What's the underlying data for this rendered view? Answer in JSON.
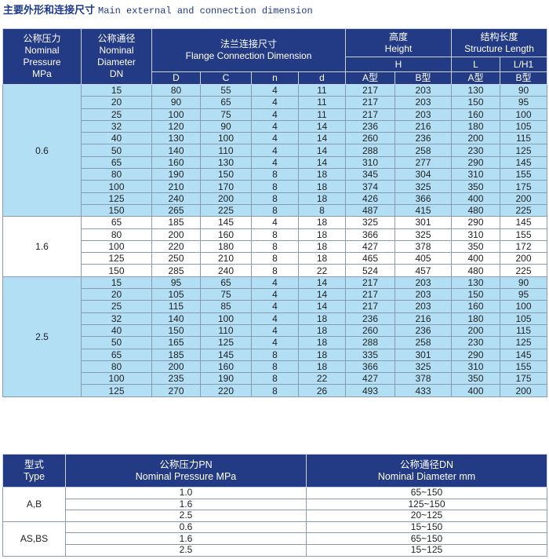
{
  "title": {
    "cn": "主要外形和连接尺寸",
    "en": "Main external and connection  dimension"
  },
  "table1": {
    "headers": {
      "pressure": [
        "公称压力",
        "Nominal",
        "Pressure",
        "MPa"
      ],
      "diameter": [
        "公称通径",
        "Nominal",
        "Diameter",
        "DN"
      ],
      "flange": [
        "法兰连接尺寸",
        "Flange Connection Dimension"
      ],
      "height": [
        "高度",
        "Height"
      ],
      "length": [
        "结构长度",
        "Structure Length"
      ],
      "H": "H",
      "L": "L",
      "LH1": "L/H1",
      "sub": [
        "D",
        "C",
        "n",
        "d",
        "A型",
        "B型",
        "A型",
        "B型"
      ]
    },
    "groups": [
      {
        "pressure": "0.6",
        "shade": "blue",
        "rows": [
          [
            "15",
            "80",
            "55",
            "4",
            "11",
            "217",
            "203",
            "130",
            "90"
          ],
          [
            "20",
            "90",
            "65",
            "4",
            "11",
            "217",
            "203",
            "150",
            "95"
          ],
          [
            "25",
            "100",
            "75",
            "4",
            "11",
            "217",
            "203",
            "160",
            "100"
          ],
          [
            "32",
            "120",
            "90",
            "4",
            "14",
            "236",
            "216",
            "180",
            "105"
          ],
          [
            "40",
            "130",
            "100",
            "4",
            "14",
            "260",
            "236",
            "200",
            "115"
          ],
          [
            "50",
            "140",
            "110",
            "4",
            "14",
            "288",
            "258",
            "230",
            "125"
          ],
          [
            "65",
            "160",
            "130",
            "4",
            "14",
            "310",
            "277",
            "290",
            "145"
          ],
          [
            "80",
            "190",
            "150",
            "8",
            "18",
            "345",
            "304",
            "310",
            "155"
          ],
          [
            "100",
            "210",
            "170",
            "8",
            "18",
            "374",
            "325",
            "350",
            "175"
          ],
          [
            "125",
            "240",
            "200",
            "8",
            "18",
            "426",
            "366",
            "400",
            "200"
          ],
          [
            "150",
            "265",
            "225",
            "8",
            "8",
            "487",
            "415",
            "480",
            "225"
          ]
        ]
      },
      {
        "pressure": "1.6",
        "shade": "white",
        "rows": [
          [
            "65",
            "185",
            "145",
            "4",
            "18",
            "325",
            "301",
            "290",
            "145"
          ],
          [
            "80",
            "200",
            "160",
            "8",
            "18",
            "366",
            "325",
            "310",
            "155"
          ],
          [
            "100",
            "220",
            "180",
            "8",
            "18",
            "427",
            "378",
            "350",
            "172"
          ],
          [
            "125",
            "250",
            "210",
            "8",
            "18",
            "465",
            "405",
            "400",
            "200"
          ],
          [
            "150",
            "285",
            "240",
            "8",
            "22",
            "524",
            "457",
            "480",
            "225"
          ]
        ]
      },
      {
        "pressure": "2.5",
        "shade": "blue",
        "rows": [
          [
            "15",
            "95",
            "65",
            "4",
            "14",
            "217",
            "203",
            "130",
            "90"
          ],
          [
            "20",
            "105",
            "75",
            "4",
            "14",
            "217",
            "203",
            "150",
            "95"
          ],
          [
            "25",
            "115",
            "85",
            "4",
            "14",
            "217",
            "203",
            "160",
            "100"
          ],
          [
            "32",
            "140",
            "100",
            "4",
            "18",
            "236",
            "216",
            "180",
            "105"
          ],
          [
            "40",
            "150",
            "110",
            "4",
            "18",
            "260",
            "236",
            "200",
            "115"
          ],
          [
            "50",
            "165",
            "125",
            "4",
            "18",
            "288",
            "258",
            "230",
            "125"
          ],
          [
            "65",
            "185",
            "145",
            "8",
            "18",
            "335",
            "301",
            "290",
            "145"
          ],
          [
            "80",
            "200",
            "160",
            "8",
            "18",
            "366",
            "325",
            "310",
            "155"
          ],
          [
            "100",
            "235",
            "190",
            "8",
            "22",
            "427",
            "378",
            "350",
            "175"
          ],
          [
            "125",
            "270",
            "220",
            "8",
            "26",
            "493",
            "433",
            "400",
            "200"
          ]
        ]
      }
    ]
  },
  "table2": {
    "headers": {
      "type": [
        "型式",
        "Type"
      ],
      "pressure": [
        "公称压力PN",
        "Nominal Pressure MPa"
      ],
      "diameter": [
        "公称通径DN",
        "Nominal Diameter mm"
      ]
    },
    "groups": [
      {
        "type": "A,B",
        "rows": [
          [
            "1.0",
            "65~150"
          ],
          [
            "1.6",
            "125~150"
          ],
          [
            "2.5",
            "20~125"
          ]
        ]
      },
      {
        "type": "AS,BS",
        "rows": [
          [
            "0.6",
            "15~150"
          ],
          [
            "1.6",
            "65~150"
          ],
          [
            "2.5",
            "15~125"
          ]
        ]
      }
    ]
  },
  "colors": {
    "header": "#233a85",
    "shade": "#b3dff5",
    "title": "#1e3a8c"
  }
}
